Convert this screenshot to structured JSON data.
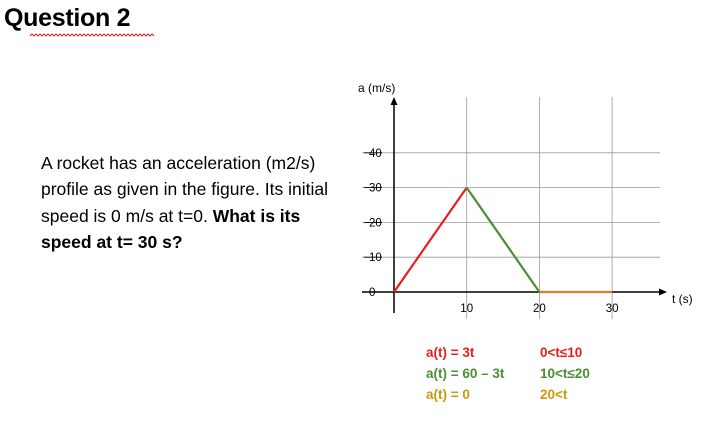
{
  "heading": "Question 2",
  "problem": {
    "text_plain": "A rocket has an acceleration (m2/s) profile as given in the figure. Its initial speed is 0 m/s at t=0.",
    "text_bold": "What is its speed at t= 30 s?"
  },
  "chart_data": {
    "type": "line",
    "ylabel": "a (m/s)",
    "xlabel": "t (s)",
    "x_ticks": [
      0,
      10,
      20,
      30
    ],
    "x_tick_labels": [
      "10",
      "20",
      "30"
    ],
    "y_ticks": [
      0,
      10,
      20,
      30,
      40
    ],
    "y_tick_labels": [
      "0",
      "10",
      "20",
      "30",
      "40"
    ],
    "xlim": [
      0,
      35
    ],
    "ylim": [
      -5,
      48
    ],
    "grid": true,
    "series": [
      {
        "x": [
          0,
          10
        ],
        "y": [
          0,
          30
        ],
        "color": "#e8201c"
      },
      {
        "x": [
          10,
          20
        ],
        "y": [
          30,
          0
        ],
        "color": "#4b8f35"
      },
      {
        "x": [
          20,
          30
        ],
        "y": [
          0,
          0
        ],
        "color": "#e07b2a"
      }
    ],
    "annotations": [
      {
        "expr": "a(t) = 3t",
        "range": "0<t≤10",
        "color": "#e8201c"
      },
      {
        "expr": "a(t) = 60 – 3t",
        "range": "10<t≤20",
        "color": "#4b8f35"
      },
      {
        "expr": "a(t) = 0",
        "range": "20<t",
        "color": "#c79a08"
      }
    ]
  }
}
